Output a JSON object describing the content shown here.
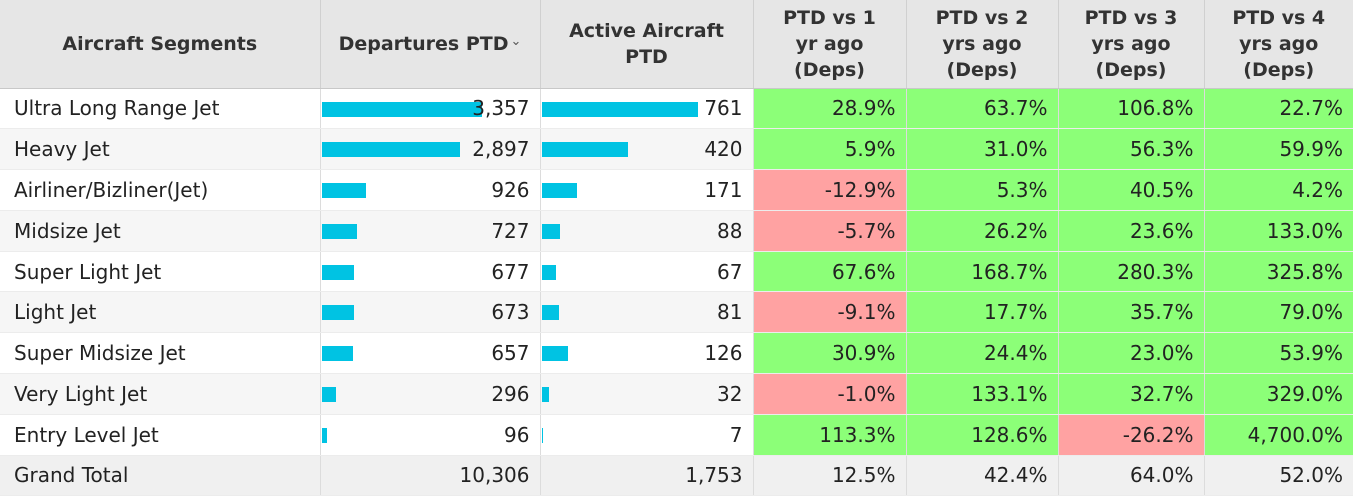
{
  "headers": {
    "segment": "Aircraft Segments",
    "departures": "Departures PTD",
    "departures_sort_icon": "⌄",
    "active": "Active Aircraft\nPTD",
    "vs1": "PTD vs 1\nyr ago\n(Deps)",
    "vs2": "PTD vs 2\nyrs ago\n(Deps)",
    "vs3": "PTD vs 3\nyrs ago\n(Deps)",
    "vs4": "PTD vs 4\nyrs ago\n(Deps)"
  },
  "colors": {
    "bar": "#00c3e3",
    "positive": "#8cff78",
    "negative": "#ffa2a2"
  },
  "bar_scale": {
    "departures_max": 3357,
    "active_max": 761
  },
  "rows": [
    {
      "segment": "Ultra Long Range Jet",
      "departures": "3,357",
      "departures_value": 3357,
      "active": "761",
      "active_value": 761,
      "vs1": "28.9%",
      "vs2": "63.7%",
      "vs3": "106.8%",
      "vs4": "22.7%"
    },
    {
      "segment": "Heavy Jet",
      "departures": "2,897",
      "departures_value": 2897,
      "active": "420",
      "active_value": 420,
      "vs1": "5.9%",
      "vs2": "31.0%",
      "vs3": "56.3%",
      "vs4": "59.9%"
    },
    {
      "segment": "Airliner/Bizliner(Jet)",
      "departures": "926",
      "departures_value": 926,
      "active": "171",
      "active_value": 171,
      "vs1": "-12.9%",
      "vs2": "5.3%",
      "vs3": "40.5%",
      "vs4": "4.2%"
    },
    {
      "segment": "Midsize Jet",
      "departures": "727",
      "departures_value": 727,
      "active": "88",
      "active_value": 88,
      "vs1": "-5.7%",
      "vs2": "26.2%",
      "vs3": "23.6%",
      "vs4": "133.0%"
    },
    {
      "segment": "Super Light Jet",
      "departures": "677",
      "departures_value": 677,
      "active": "67",
      "active_value": 67,
      "vs1": "67.6%",
      "vs2": "168.7%",
      "vs3": "280.3%",
      "vs4": "325.8%"
    },
    {
      "segment": "Light Jet",
      "departures": "673",
      "departures_value": 673,
      "active": "81",
      "active_value": 81,
      "vs1": "-9.1%",
      "vs2": "17.7%",
      "vs3": "35.7%",
      "vs4": "79.0%"
    },
    {
      "segment": "Super Midsize Jet",
      "departures": "657",
      "departures_value": 657,
      "active": "126",
      "active_value": 126,
      "vs1": "30.9%",
      "vs2": "24.4%",
      "vs3": "23.0%",
      "vs4": "53.9%"
    },
    {
      "segment": "Very Light Jet",
      "departures": "296",
      "departures_value": 296,
      "active": "32",
      "active_value": 32,
      "vs1": "-1.0%",
      "vs2": "133.1%",
      "vs3": "32.7%",
      "vs4": "329.0%"
    },
    {
      "segment": "Entry Level Jet",
      "departures": "96",
      "departures_value": 96,
      "active": "7",
      "active_value": 7,
      "vs1": "113.3%",
      "vs2": "128.6%",
      "vs3": "-26.2%",
      "vs4": "4,700.0%"
    }
  ],
  "total": {
    "segment": "Grand Total",
    "departures": "10,306",
    "active": "1,753",
    "vs1": "12.5%",
    "vs2": "42.4%",
    "vs3": "64.0%",
    "vs4": "52.0%"
  }
}
